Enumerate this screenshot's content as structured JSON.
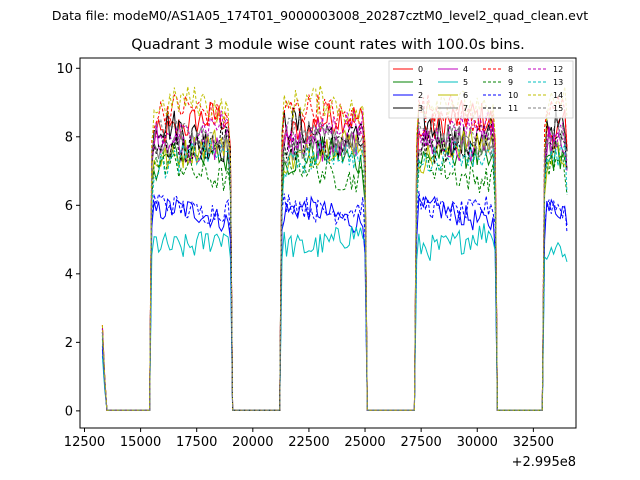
{
  "figure": {
    "suptitle": "Data file: modeM0/AS1A05_174T01_9000003008_20287cztM0_level2_quad_clean.evt"
  },
  "chart_data": {
    "type": "line",
    "title": "Quadrant 3 module wise count rates with 100.0s bins.",
    "xlabel": "",
    "ylabel": "",
    "x_offset_label": "+2.995e8",
    "xlim": [
      12300,
      34400
    ],
    "ylim": [
      -0.5,
      10.3
    ],
    "x_ticks": [
      12500,
      15000,
      17500,
      20000,
      22500,
      25000,
      27500,
      30000,
      32500
    ],
    "x_tick_labels": [
      "12500",
      "15000",
      "17500",
      "20000",
      "22500",
      "25000",
      "27500",
      "30000",
      "32500"
    ],
    "y_ticks": [
      0,
      2,
      4,
      6,
      8,
      10
    ],
    "y_tick_labels": [
      "0",
      "2",
      "4",
      "6",
      "8",
      "10"
    ],
    "grid": false,
    "legend_position": "top-right",
    "segments": [
      {
        "start": 15500,
        "end": 19000
      },
      {
        "start": 21300,
        "end": 25000
      },
      {
        "start": 27300,
        "end": 30800
      },
      {
        "start": 33000,
        "end": 34000
      }
    ],
    "gap_value": 0.02,
    "series": [
      {
        "name": "0",
        "color": "#ff0000",
        "dash": "solid",
        "level": 8.3,
        "noise": 0.5,
        "start_value": 2.5
      },
      {
        "name": "1",
        "color": "#008000",
        "dash": "solid",
        "level": 7.3,
        "noise": 0.45,
        "start_value": 2.3
      },
      {
        "name": "2",
        "color": "#0000ff",
        "dash": "solid",
        "level": 5.7,
        "noise": 0.35,
        "start_value": 1.8
      },
      {
        "name": "3",
        "color": "#000000",
        "dash": "solid",
        "level": 8.1,
        "noise": 0.55,
        "start_value": 2.4
      },
      {
        "name": "4",
        "color": "#bf00bf",
        "dash": "solid",
        "level": 7.9,
        "noise": 0.45,
        "start_value": 2.3
      },
      {
        "name": "5",
        "color": "#00bfbf",
        "dash": "solid",
        "level": 5.0,
        "noise": 0.4,
        "start_value": 1.6
      },
      {
        "name": "6",
        "color": "#bfbf00",
        "dash": "solid",
        "level": 7.6,
        "noise": 0.45,
        "start_value": 2.2
      },
      {
        "name": "7",
        "color": "#808080",
        "dash": "solid",
        "level": 7.7,
        "noise": 0.4,
        "start_value": 2.2
      },
      {
        "name": "8",
        "color": "#ff0000",
        "dash": "dashed",
        "level": 8.6,
        "noise": 0.45,
        "start_value": 2.5
      },
      {
        "name": "9",
        "color": "#008000",
        "dash": "dashed",
        "level": 7.0,
        "noise": 0.4,
        "start_value": 2.1
      },
      {
        "name": "10",
        "color": "#0000ff",
        "dash": "dashed",
        "level": 6.0,
        "noise": 0.35,
        "start_value": 1.9
      },
      {
        "name": "11",
        "color": "#000000",
        "dash": "dashed",
        "level": 7.9,
        "noise": 0.45,
        "start_value": 2.3
      },
      {
        "name": "12",
        "color": "#bf00bf",
        "dash": "dashed",
        "level": 8.2,
        "noise": 0.4,
        "start_value": 2.4
      },
      {
        "name": "13",
        "color": "#00bfbf",
        "dash": "dashed",
        "level": 7.3,
        "noise": 0.4,
        "start_value": 2.2
      },
      {
        "name": "14",
        "color": "#bfbf00",
        "dash": "dashed",
        "level": 8.8,
        "noise": 0.45,
        "start_value": 2.5
      },
      {
        "name": "15",
        "color": "#808080",
        "dash": "dashed",
        "level": 8.0,
        "noise": 0.4,
        "start_value": 2.3
      }
    ]
  }
}
